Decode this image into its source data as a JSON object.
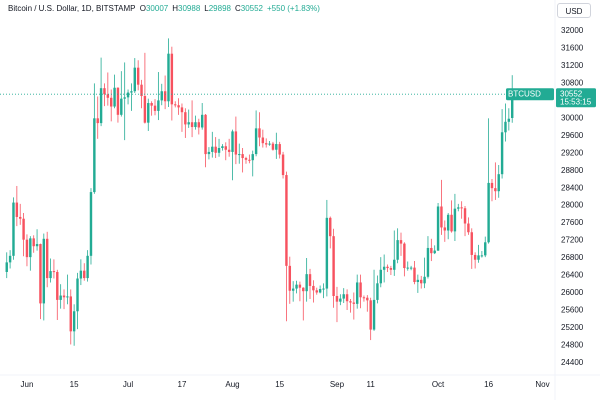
{
  "header": {
    "title": "Bitcoin / U.S. Dollar, 1D, BITSTAMP",
    "open_label": "O",
    "high_label": "H",
    "low_label": "L",
    "close_label": "C",
    "change_text": "+550 (+1.83%)"
  },
  "currency_button": "USD",
  "price_tag": {
    "symbol": "BTCUSD",
    "countdown": "15:53:15"
  },
  "chart_data": {
    "type": "candlestick",
    "up_color": "#22ab94",
    "down_color": "#f7525f",
    "grid": false,
    "series": [
      {
        "name": "BTCUSD",
        "open": [
          26480,
          26700,
          26850,
          28070,
          27740,
          27700,
          27220,
          26820,
          27250,
          27070,
          27120,
          25760,
          27240,
          26340,
          26500,
          26480,
          25840,
          25940,
          25900,
          25920,
          25120,
          25580,
          26330,
          26510,
          26340,
          26850,
          28310,
          30000,
          29890,
          30690,
          30550,
          30470,
          30270,
          30700,
          30080,
          30450,
          30480,
          30590,
          30620,
          31160,
          30770,
          30510,
          29900,
          30350,
          30290,
          30170,
          30410,
          30620,
          30390,
          31480,
          30320,
          30300,
          30250,
          30140,
          29860,
          29910,
          29800,
          29910,
          29790,
          30080,
          29180,
          29230,
          29350,
          29210,
          29320,
          29360,
          29280,
          29230,
          29700,
          29170,
          29180,
          29090,
          29050,
          29040,
          29180,
          29770,
          29560,
          29430,
          29400,
          29420,
          29280,
          29410,
          29170,
          28700,
          26620,
          26050,
          26100,
          26190,
          26120,
          26040,
          26430,
          26160,
          26060,
          26010,
          26090,
          26100,
          27720,
          27300,
          25930,
          25800,
          25870,
          25970,
          25810,
          25780,
          25750,
          26240,
          25900,
          25890,
          25830,
          25160,
          25840,
          26220,
          26530,
          26600,
          26570,
          26530,
          26760,
          27210,
          27130,
          26570,
          26580,
          26580,
          26250,
          26300,
          26220,
          26370,
          27030,
          26910,
          26970,
          27980,
          27500,
          27430,
          27790,
          27410,
          27930,
          27960,
          27940,
          27590,
          27390,
          26870,
          26760,
          26860,
          26860,
          27160,
          28520,
          28400,
          28330,
          28720,
          29680,
          29920,
          30007
        ],
        "high": [
          26930,
          26980,
          28190,
          28450,
          28040,
          27830,
          27340,
          27300,
          27320,
          27460,
          27130,
          27360,
          27400,
          26790,
          26770,
          26530,
          26200,
          26080,
          26420,
          26080,
          25740,
          26460,
          26770,
          26680,
          26980,
          28400,
          30800,
          30500,
          31390,
          30800,
          31050,
          30660,
          31000,
          30710,
          31080,
          31280,
          30660,
          30800,
          31380,
          31330,
          30880,
          31500,
          30450,
          30390,
          30440,
          31060,
          30790,
          30980,
          31830,
          31640,
          30390,
          30460,
          30340,
          30230,
          30200,
          30410,
          30060,
          29990,
          30350,
          30100,
          29340,
          29690,
          29570,
          29530,
          29410,
          29450,
          29530,
          29740,
          30040,
          29420,
          29320,
          29120,
          29170,
          29260,
          30180,
          30140,
          29740,
          29540,
          29480,
          29460,
          29670,
          29460,
          29230,
          28780,
          26830,
          26270,
          26280,
          26260,
          26130,
          26800,
          26550,
          26290,
          26120,
          26170,
          26220,
          28130,
          27750,
          27470,
          26140,
          25970,
          26110,
          26080,
          25860,
          26010,
          26420,
          26420,
          25940,
          25950,
          25890,
          26530,
          26400,
          26820,
          26880,
          26650,
          26620,
          27430,
          27480,
          27380,
          27160,
          26720,
          26620,
          26730,
          26420,
          26390,
          26810,
          27300,
          27240,
          27090,
          28060,
          28590,
          27660,
          27830,
          28120,
          28270,
          28040,
          28100,
          27990,
          27730,
          27480,
          26930,
          27100,
          26960,
          27290,
          30000,
          28610,
          28990,
          28930,
          30210,
          30340,
          30230,
          30988
        ],
        "low": [
          26340,
          26560,
          26760,
          27530,
          27560,
          26840,
          26610,
          26510,
          26920,
          26970,
          25400,
          25370,
          26130,
          26240,
          26330,
          25380,
          25640,
          25630,
          25740,
          24820,
          24790,
          25170,
          26180,
          26280,
          26260,
          26650,
          28270,
          29530,
          29820,
          30280,
          30290,
          29930,
          30230,
          29900,
          30040,
          29500,
          30320,
          30170,
          30580,
          30640,
          30230,
          29880,
          29710,
          30060,
          30070,
          29960,
          30300,
          30210,
          30260,
          29950,
          30250,
          30080,
          29690,
          29550,
          29780,
          29570,
          29740,
          29630,
          29740,
          28880,
          29060,
          29100,
          29090,
          29120,
          29260,
          29040,
          29120,
          28580,
          28950,
          28960,
          28760,
          28960,
          28970,
          28670,
          29130,
          29360,
          29330,
          29330,
          29370,
          29260,
          29070,
          29080,
          28620,
          25350,
          25750,
          25800,
          25990,
          25810,
          25370,
          25800,
          25860,
          25780,
          25960,
          25990,
          25880,
          25920,
          27020,
          25660,
          25330,
          25720,
          25770,
          25610,
          25550,
          25390,
          25640,
          25650,
          25800,
          25570,
          24920,
          25130,
          25760,
          26130,
          26240,
          26480,
          26410,
          26390,
          26680,
          26850,
          26380,
          26510,
          26520,
          26200,
          26000,
          26100,
          26110,
          26330,
          26730,
          26890,
          26960,
          27330,
          27170,
          27230,
          27380,
          27190,
          27870,
          27700,
          27300,
          27330,
          26550,
          26560,
          26690,
          26810,
          26820,
          27130,
          28100,
          28130,
          28180,
          28620,
          29470,
          29720,
          29898
        ],
        "close": [
          26700,
          26850,
          28070,
          27740,
          27700,
          27220,
          26820,
          27250,
          27070,
          27120,
          25760,
          27240,
          26340,
          26500,
          26480,
          25840,
          25940,
          25900,
          25920,
          25120,
          25580,
          26330,
          26510,
          26340,
          26850,
          28310,
          30000,
          29890,
          30690,
          30550,
          30470,
          30270,
          30700,
          30080,
          30450,
          30480,
          30590,
          30620,
          31160,
          30770,
          30510,
          29900,
          30350,
          30290,
          30170,
          30410,
          30620,
          30390,
          31480,
          30320,
          30300,
          30250,
          30140,
          29860,
          29910,
          29800,
          29910,
          29790,
          30080,
          29180,
          29230,
          29350,
          29210,
          29320,
          29360,
          29280,
          29230,
          29700,
          29170,
          29180,
          29090,
          29050,
          29040,
          29180,
          29770,
          29560,
          29430,
          29400,
          29420,
          29280,
          29410,
          29170,
          28700,
          26620,
          26050,
          26100,
          26190,
          26120,
          26040,
          26430,
          26160,
          26060,
          26010,
          26090,
          26100,
          27720,
          27300,
          25930,
          25800,
          25870,
          25970,
          25810,
          25780,
          25750,
          26240,
          25900,
          25890,
          25830,
          25160,
          25840,
          26220,
          26530,
          26600,
          26570,
          26530,
          26760,
          27210,
          27130,
          26570,
          26580,
          26580,
          26250,
          26300,
          26220,
          26370,
          27030,
          26910,
          26970,
          27980,
          27500,
          27430,
          27790,
          27410,
          27930,
          27960,
          27940,
          27590,
          27390,
          26870,
          26760,
          26860,
          26860,
          27160,
          28520,
          28400,
          28330,
          28720,
          29680,
          29920,
          29990,
          30552
        ]
      }
    ],
    "xlim": [
      -2,
      162.7
    ],
    "xticks": [
      {
        "value": 6,
        "label": "Jun"
      },
      {
        "value": 20,
        "label": "15"
      },
      {
        "value": 36,
        "label": "Jul"
      },
      {
        "value": 52,
        "label": "17"
      },
      {
        "value": 67,
        "label": "Aug"
      },
      {
        "value": 81,
        "label": "15"
      },
      {
        "value": 98,
        "label": "Sep"
      },
      {
        "value": 108,
        "label": "11"
      },
      {
        "value": 128,
        "label": "Oct"
      },
      {
        "value": 143,
        "label": "16"
      },
      {
        "value": 159,
        "label": "Nov"
      }
    ],
    "ylim": [
      24120,
      32710
    ],
    "yticks": [
      24400,
      24800,
      25200,
      25600,
      26000,
      26400,
      26800,
      27200,
      27600,
      28000,
      28400,
      28800,
      29200,
      29600,
      30000,
      30400,
      30800,
      31200,
      31600,
      32000
    ]
  }
}
